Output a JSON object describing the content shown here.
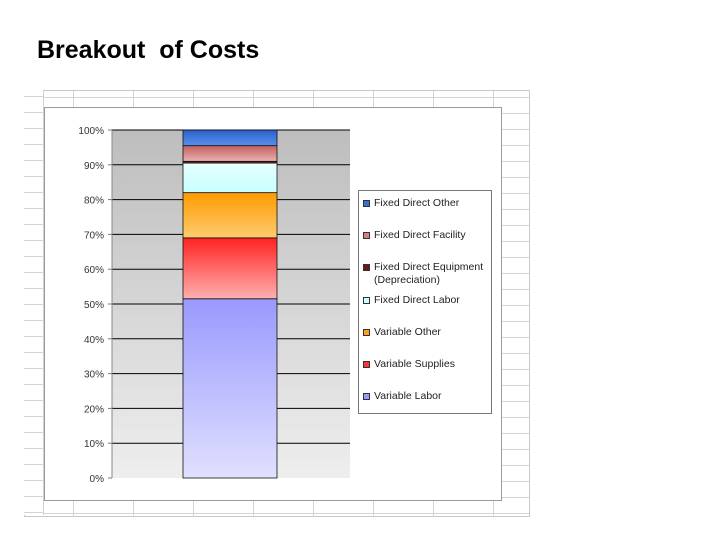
{
  "slide": {
    "title": "Breakout  of Costs"
  },
  "chart_data": {
    "type": "bar",
    "stacked": true,
    "normalized_100_percent": true,
    "categories": [
      ""
    ],
    "ylim": [
      0,
      100
    ],
    "y_ticks": [
      "0%",
      "10%",
      "20%",
      "30%",
      "40%",
      "50%",
      "60%",
      "70%",
      "80%",
      "90%",
      "100%"
    ],
    "legend_position": "right",
    "grid": "horizontal",
    "series": [
      {
        "name": "Variable Labor",
        "values": [
          51.5
        ],
        "color": "#9999ff"
      },
      {
        "name": "Variable Supplies",
        "values": [
          17.5
        ],
        "color": "#ff3333"
      },
      {
        "name": "Variable Other",
        "values": [
          13
        ],
        "color": "#ffa020"
      },
      {
        "name": "Fixed Direct Labor",
        "values": [
          8.5
        ],
        "color": "#ccffff"
      },
      {
        "name": "Fixed Direct Equipment (Depreciation)",
        "values": [
          0.5
        ],
        "color": "#6b1a1a"
      },
      {
        "name": "Fixed Direct Facility",
        "values": [
          4.5
        ],
        "color": "#d88080"
      },
      {
        "name": "Fixed Direct Other",
        "values": [
          4.5
        ],
        "color": "#3a6fd8"
      }
    ]
  }
}
